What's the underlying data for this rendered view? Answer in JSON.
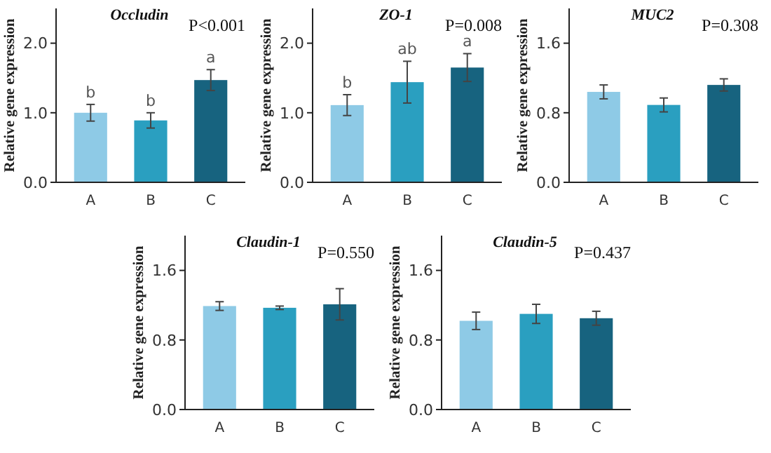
{
  "chart_data": [
    {
      "type": "bar",
      "title": "Occludin",
      "ylabel": "Relative gene expression",
      "categories": [
        "A",
        "B",
        "C"
      ],
      "values": [
        1.0,
        0.89,
        1.47
      ],
      "errors": [
        0.12,
        0.11,
        0.15
      ],
      "colors": [
        "#8ecae6",
        "#2a9fc0",
        "#17637f"
      ],
      "ylim": [
        0,
        2.5
      ],
      "yticks": [
        {
          "value": 0,
          "label": "0.0"
        },
        {
          "value": 1,
          "label": "1.0"
        },
        {
          "value": 2,
          "label": "2.0"
        }
      ],
      "annotations": [
        "P<0.001",
        {
          "text": "b",
          "x": "A",
          "y": 1.12
        },
        {
          "text": "b",
          "x": "B",
          "y": 1.0
        },
        {
          "text": "a",
          "x": "C",
          "y": 1.62
        }
      ]
    },
    {
      "type": "bar",
      "title": "ZO-1",
      "ylabel": "Relative gene expression",
      "categories": [
        "A",
        "B",
        "C"
      ],
      "values": [
        1.11,
        1.44,
        1.65
      ],
      "errors": [
        0.15,
        0.3,
        0.2
      ],
      "colors": [
        "#8ecae6",
        "#2a9fc0",
        "#17637f"
      ],
      "ylim": [
        0,
        2.5
      ],
      "yticks": [
        {
          "value": 0,
          "label": "0.0"
        },
        {
          "value": 1,
          "label": "1.0"
        },
        {
          "value": 2,
          "label": "2.0"
        }
      ],
      "annotations": [
        "P=0.008",
        {
          "text": "b",
          "x": "A",
          "y": 1.26
        },
        {
          "text": "ab",
          "x": "B",
          "y": 1.74
        },
        {
          "text": "a",
          "x": "C",
          "y": 1.85
        }
      ]
    },
    {
      "type": "bar",
      "title": "MUC2",
      "ylabel": "Relative gene expression",
      "categories": [
        "A",
        "B",
        "C"
      ],
      "values": [
        1.04,
        0.89,
        1.12
      ],
      "errors": [
        0.08,
        0.08,
        0.07
      ],
      "colors": [
        "#8ecae6",
        "#2a9fc0",
        "#17637f"
      ],
      "ylim": [
        0,
        2.0
      ],
      "yticks": [
        {
          "value": 0,
          "label": "0.0"
        },
        {
          "value": 0.8,
          "label": "0.8"
        },
        {
          "value": 1.6,
          "label": "1.6"
        }
      ],
      "annotations": [
        "P=0.308"
      ]
    },
    {
      "type": "bar",
      "title": "Claudin-1",
      "ylabel": "Relative gene expression",
      "categories": [
        "A",
        "B",
        "C"
      ],
      "values": [
        1.19,
        1.17,
        1.21
      ],
      "errors": [
        0.05,
        0.02,
        0.18
      ],
      "colors": [
        "#8ecae6",
        "#2a9fc0",
        "#17637f"
      ],
      "ylim": [
        0,
        2.0
      ],
      "yticks": [
        {
          "value": 0,
          "label": "0.0"
        },
        {
          "value": 0.8,
          "label": "0.8"
        },
        {
          "value": 1.6,
          "label": "1.6"
        }
      ],
      "annotations": [
        "P=0.550"
      ]
    },
    {
      "type": "bar",
      "title": "Claudin-5",
      "ylabel": "Relative gene expression",
      "categories": [
        "A",
        "B",
        "C"
      ],
      "values": [
        1.02,
        1.1,
        1.05
      ],
      "errors": [
        0.1,
        0.11,
        0.08
      ],
      "colors": [
        "#8ecae6",
        "#2a9fc0",
        "#17637f"
      ],
      "ylim": [
        0,
        2.0
      ],
      "yticks": [
        {
          "value": 0,
          "label": "0.0"
        },
        {
          "value": 0.8,
          "label": "0.8"
        },
        {
          "value": 1.6,
          "label": "1.6"
        }
      ],
      "annotations": [
        "P=0.437"
      ]
    }
  ]
}
